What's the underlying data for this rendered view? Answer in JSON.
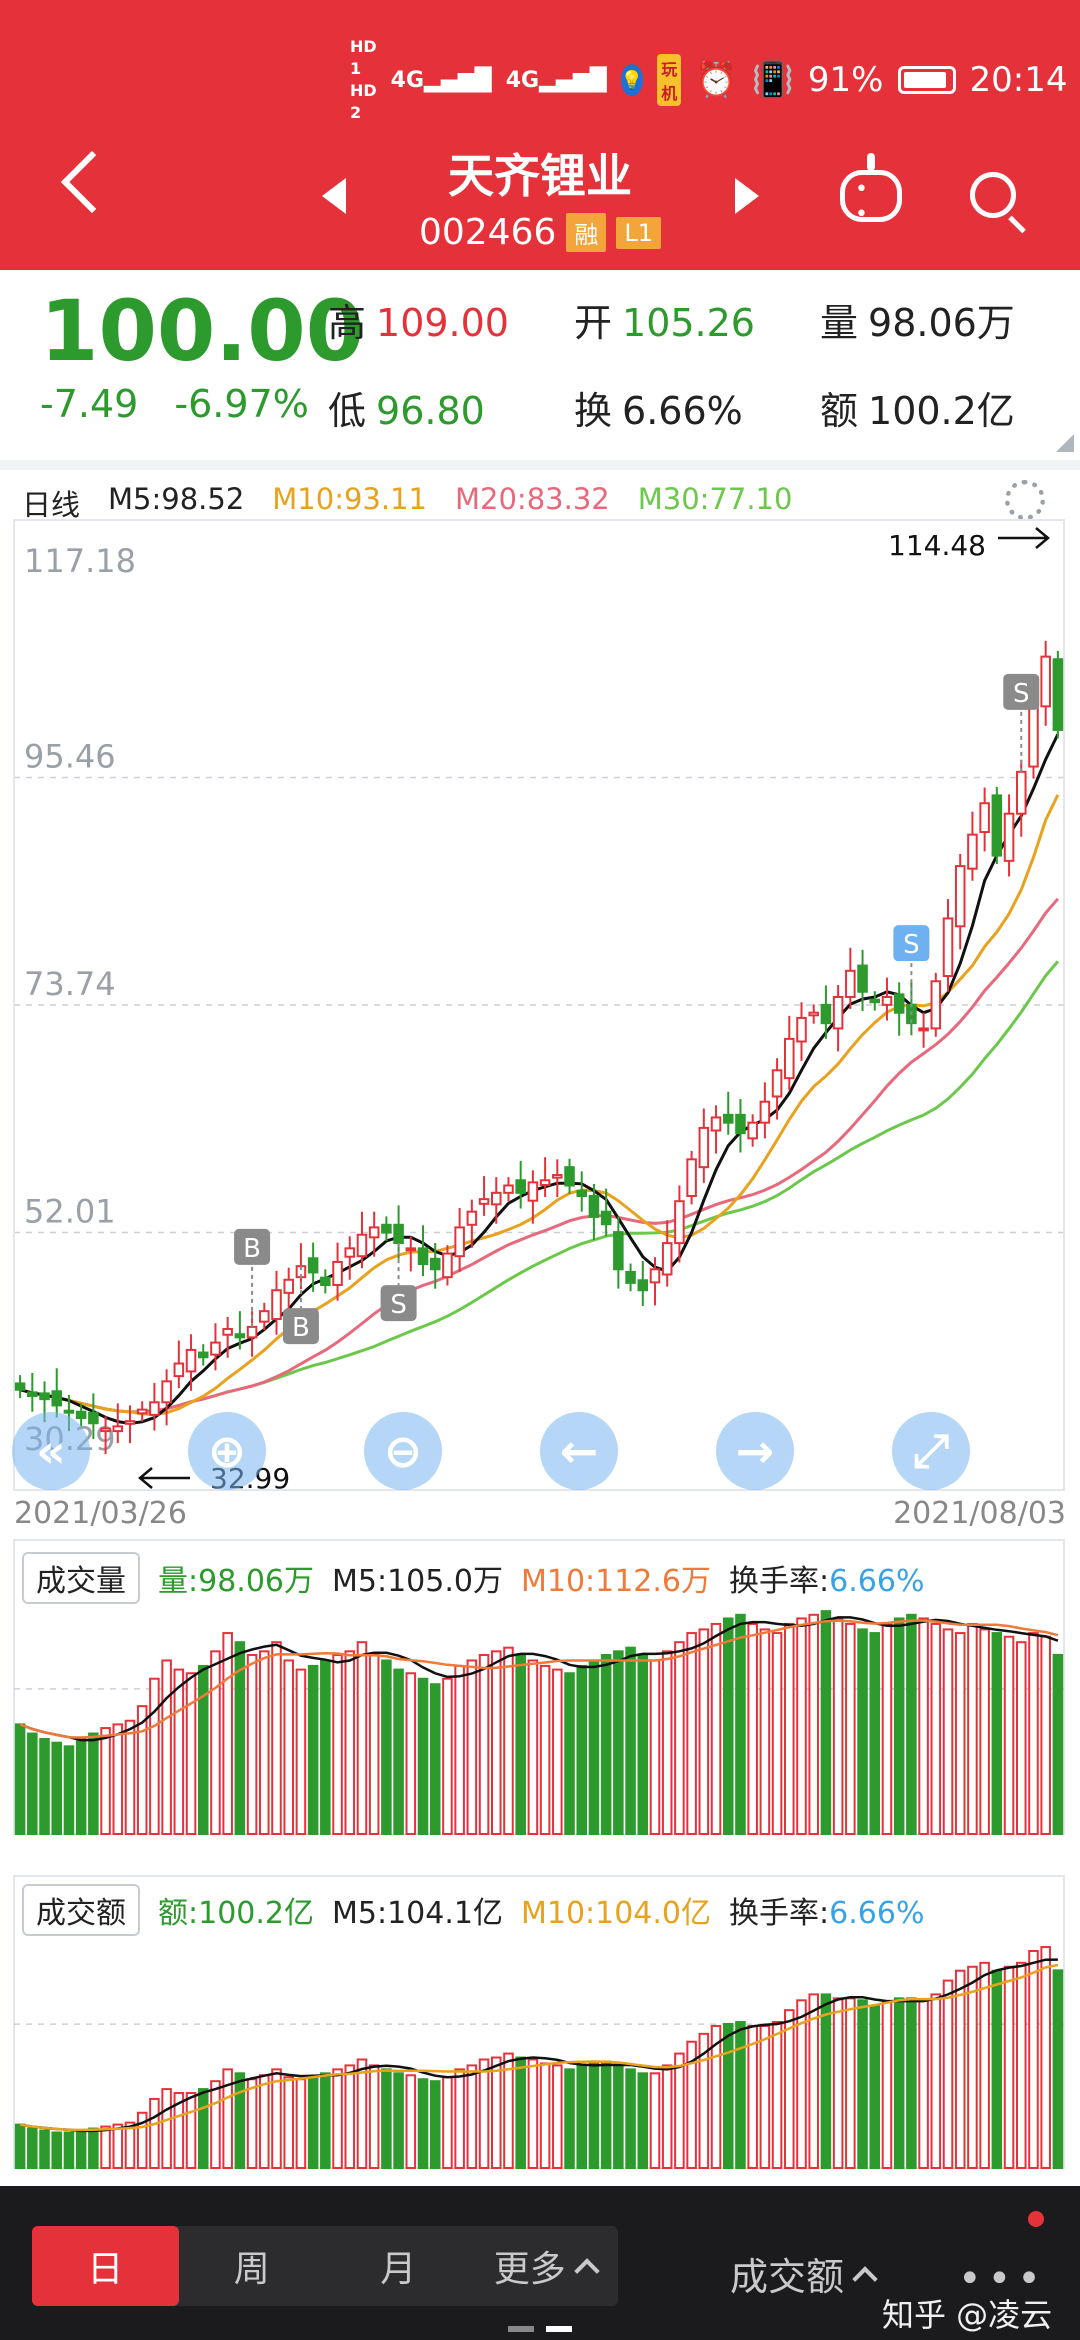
{
  "status_bar": {
    "hd1": "HD 1",
    "hd2": "HD 2",
    "sig1": "4G",
    "sig2": "4G",
    "app_tag": "玩机",
    "battery_pct": "91%",
    "time": "20:14"
  },
  "header": {
    "stock_name": "天齐锂业",
    "stock_code": "002466",
    "tag_rong": "融",
    "tag_level": "L1"
  },
  "quote": {
    "price": "100.00",
    "change": "-7.49",
    "change_pct": "-6.97%",
    "high_label": "高",
    "high": "109.00",
    "low_label": "低",
    "low": "96.80",
    "open_label": "开",
    "open": "105.26",
    "turnover_label": "换",
    "turnover": "6.66%",
    "volume_label": "量",
    "volume": "98.06万",
    "amount_label": "额",
    "amount": "100.2亿"
  },
  "ma_header": {
    "period": "日线",
    "m5": "M5:98.52",
    "m10": "M10:93.11",
    "m20": "M20:83.32",
    "m30": "M30:77.10"
  },
  "price_axis": [
    "117.18",
    "95.46",
    "73.74",
    "52.01",
    "30.29"
  ],
  "max_label": "114.48",
  "min_label": "32.99",
  "date_start": "2021/03/26",
  "date_end": "2021/08/03",
  "markers": [
    "B",
    "B",
    "S",
    "S",
    "S"
  ],
  "volume_panel": {
    "title": "成交量",
    "value": "量:98.06万",
    "m5": "M5:105.0万",
    "m10": "M10:112.6万",
    "turnover_label": "换手率:",
    "turnover": "6.66%"
  },
  "amount_panel": {
    "title": "成交额",
    "value": "额:100.2亿",
    "m5": "M5:104.1亿",
    "m10": "M10:104.0亿",
    "turnover_label": "换手率:",
    "turnover": "6.66%"
  },
  "tabs": {
    "day": "日",
    "week": "周",
    "month": "月",
    "more": "更多"
  },
  "indicator_selector": "成交额",
  "watermark": "知乎 @凌云",
  "colors": {
    "brand_red": "#e5323a",
    "up_red": "#e5323a",
    "down_green": "#2c9a2c",
    "m5": "#111111",
    "m10": "#e8a21d",
    "m20": "#e8687c",
    "m30": "#6cc84b"
  },
  "chart_data": {
    "type": "candlestick",
    "x_start": "2021/03/26",
    "x_end": "2021/08/03",
    "ylim": [
      30.29,
      117.18
    ],
    "y_ticks": [
      117.18,
      95.46,
      73.74,
      52.01,
      30.29
    ],
    "close": [
      37.0,
      36.4,
      36.1,
      35.5,
      34.9,
      34.3,
      33.8,
      33.3,
      33.5,
      34.0,
      35.1,
      35.8,
      37.8,
      39.5,
      40.8,
      40.1,
      41.5,
      42.8,
      42.0,
      43.0,
      44.5,
      46.5,
      47.5,
      48.8,
      48.2,
      47.0,
      49.2,
      50.5,
      51.8,
      52.5,
      52.0,
      51.0,
      50.5,
      49.0,
      48.5,
      50.0,
      52.5,
      54.0,
      55.2,
      55.8,
      56.5,
      55.8,
      56.8,
      57.0,
      57.5,
      56.5,
      55.5,
      53.5,
      52.8,
      48.5,
      47.2,
      46.5,
      48.5,
      51.0,
      55.0,
      59.0,
      62.0,
      63.0,
      62.5,
      61.5,
      62.5,
      64.5,
      67.5,
      70.5,
      72.5,
      73.0,
      72.0,
      74.5,
      77.0,
      75.0,
      74.0,
      74.5,
      73.0,
      72.0,
      71.5,
      76.0,
      82.0,
      87.0,
      90.0,
      93.0,
      88.0,
      92.0,
      96.0,
      103.0,
      107.0,
      100.0
    ],
    "volume_wan": [
      60,
      55,
      52,
      50,
      48,
      52,
      55,
      58,
      60,
      62,
      70,
      85,
      95,
      90,
      88,
      92,
      100,
      110,
      105,
      98,
      100,
      105,
      95,
      90,
      92,
      95,
      98,
      100,
      105,
      98,
      95,
      90,
      88,
      85,
      82,
      85,
      92,
      95,
      98,
      100,
      102,
      98,
      95,
      92,
      90,
      88,
      92,
      95,
      98,
      100,
      102,
      98,
      95,
      100,
      105,
      110,
      112,
      115,
      118,
      120,
      115,
      112,
      110,
      115,
      118,
      120,
      122,
      118,
      115,
      112,
      110,
      115,
      118,
      120,
      118,
      115,
      112,
      110,
      115,
      112,
      110,
      108,
      105,
      110,
      108,
      98.06
    ],
    "amount_yi": [
      22,
      20,
      19,
      18,
      18,
      19,
      20,
      21,
      22,
      23,
      28,
      35,
      40,
      38,
      38,
      40,
      44,
      50,
      48,
      45,
      47,
      50,
      46,
      45,
      46,
      48,
      50,
      52,
      55,
      52,
      50,
      48,
      47,
      45,
      44,
      46,
      50,
      52,
      55,
      56,
      58,
      56,
      55,
      53,
      52,
      50,
      52,
      53,
      54,
      52,
      50,
      48,
      48,
      52,
      58,
      64,
      68,
      72,
      73,
      74,
      72,
      72,
      74,
      80,
      85,
      88,
      88,
      86,
      86,
      85,
      82,
      84,
      86,
      86,
      85,
      88,
      95,
      100,
      102,
      104,
      100,
      102,
      104,
      110,
      112,
      100.2
    ]
  }
}
